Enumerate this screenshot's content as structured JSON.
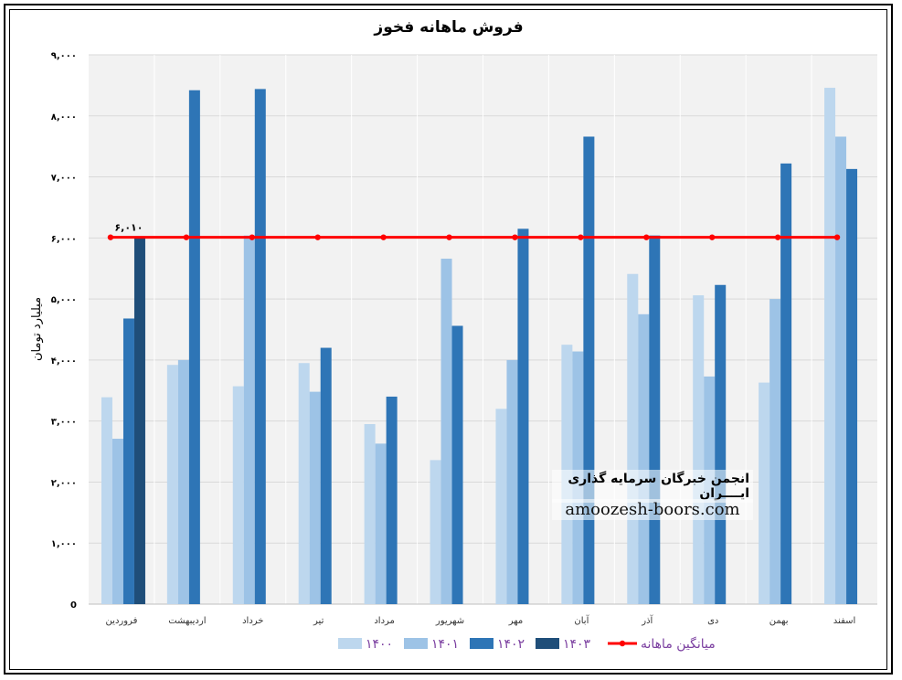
{
  "chart_data": {
    "type": "bar",
    "title": "فروش ماهانه فخوز",
    "ylabel": "میلیارد تومان",
    "xlabel": "",
    "ylim": [
      0,
      9000
    ],
    "yticks": [
      0,
      1000,
      2000,
      3000,
      4000,
      5000,
      6000,
      7000,
      8000,
      9000
    ],
    "ytick_labels": [
      "0",
      "۱,۰۰۰",
      "۲,۰۰۰",
      "۳,۰۰۰",
      "۴,۰۰۰",
      "۵,۰۰۰",
      "۶,۰۰۰",
      "۷,۰۰۰",
      "۸,۰۰۰",
      "۹,۰۰۰"
    ],
    "categories": [
      "فروردین",
      "اردیبهشت",
      "خرداد",
      "تیر",
      "مرداد",
      "شهریور",
      "مهر",
      "آبان",
      "آذر",
      "دی",
      "بهمن",
      "اسفند"
    ],
    "series": [
      {
        "name": "۱۴۰۰",
        "color": "#bdd7ee",
        "values": [
          3390,
          3920,
          3570,
          3950,
          2950,
          2360,
          3200,
          4250,
          5410,
          5060,
          3630,
          8460
        ]
      },
      {
        "name": "۱۴۰۱",
        "color": "#9dc3e6",
        "values": [
          2710,
          4000,
          6040,
          3480,
          2630,
          5660,
          4000,
          4140,
          4750,
          3730,
          5000,
          7660
        ]
      },
      {
        "name": "۱۴۰۲",
        "color": "#2e75b6",
        "values": [
          4680,
          8420,
          8440,
          4200,
          3400,
          4560,
          6150,
          7660,
          6040,
          5230,
          7220,
          7130
        ]
      },
      {
        "name": "۱۴۰۳",
        "color": "#1f4e79",
        "values": [
          6010,
          null,
          null,
          null,
          null,
          null,
          null,
          null,
          null,
          null,
          null,
          null
        ]
      }
    ],
    "average_line": {
      "name": "میانگین ماهانه",
      "value": 6010,
      "label": "۶,۰۱۰",
      "color": "#ff0000"
    },
    "grid": true,
    "legend_position": "bottom"
  },
  "watermark": {
    "title": "انجمن خبرگان سرمایه گذاری ایــــران",
    "url": "amoozesh-boors.com"
  }
}
